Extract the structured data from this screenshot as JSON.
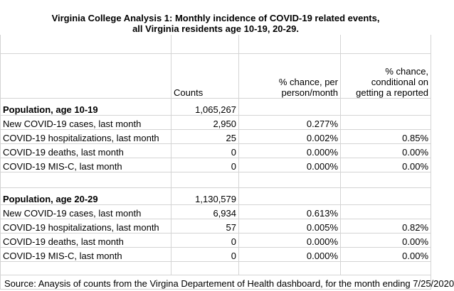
{
  "title": {
    "line1": "Virginia College Analysis 1:  Monthly incidence of COVID-19 related events,",
    "line2": "all Virginia residents age 10-19, 20-29."
  },
  "headers": {
    "counts": "Counts",
    "pct_person_line1": "% chance, per",
    "pct_person_line2": "person/month",
    "pct_cond_line1": "% chance,",
    "pct_cond_line2": "conditional on",
    "pct_cond_line3": "getting a reported"
  },
  "sections": [
    {
      "label": "Population, age 10-19",
      "population": "1,065,267",
      "rows": [
        {
          "label": "New COVID-19 cases, last month",
          "count": "2,950",
          "pct": "0.277%",
          "cond": ""
        },
        {
          "label": "COVID-19 hospitalizations, last month",
          "count": "25",
          "pct": "0.002%",
          "cond": "0.85%"
        },
        {
          "label": "COVID-19 deaths, last month",
          "count": "0",
          "pct": "0.000%",
          "cond": "0.00%"
        },
        {
          "label": "COVID-19 MIS-C, last month",
          "count": "0",
          "pct": "0.000%",
          "cond": "0.00%"
        }
      ]
    },
    {
      "label": "Population, age 20-29",
      "population": "1,130,579",
      "rows": [
        {
          "label": "New COVID-19 cases, last month",
          "count": "6,934",
          "pct": "0.613%",
          "cond": ""
        },
        {
          "label": "COVID-19 hospitalizations, last month",
          "count": "57",
          "pct": "0.005%",
          "cond": "0.82%"
        },
        {
          "label": "COVID-19 deaths, last month",
          "count": "0",
          "pct": "0.000%",
          "cond": "0.00%"
        },
        {
          "label": "COVID-19 MIS-C, last month",
          "count": "0",
          "pct": "0.000%",
          "cond": "0.00%"
        }
      ]
    }
  ],
  "source": "Source:  Anaysis of counts from the Virgina Departement of Health dashboard, for the month ending 7/25/2020"
}
